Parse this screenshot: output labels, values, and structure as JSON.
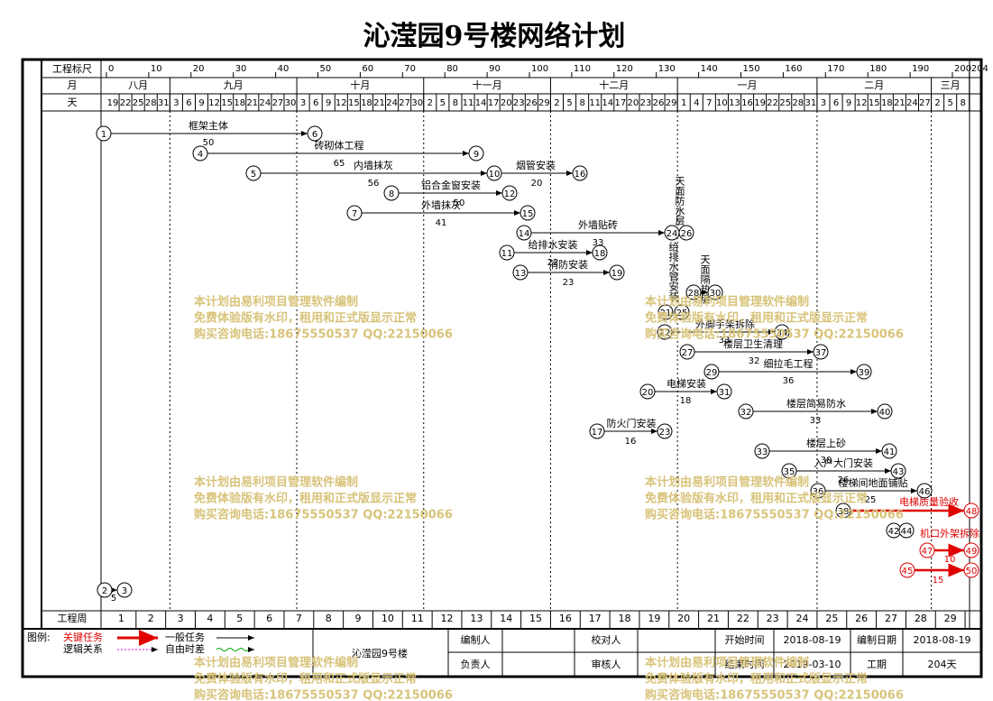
{
  "header": {
    "title": "沁滢园9号楼网络计划"
  },
  "scale": {
    "label": "工程标尺",
    "ticks": [
      0,
      10,
      20,
      30,
      40,
      50,
      60,
      70,
      80,
      90,
      100,
      110,
      120,
      130,
      140,
      150,
      160,
      170,
      180,
      190,
      200,
      204
    ]
  },
  "calendar": {
    "month_label": "月",
    "day_label": "天",
    "months": [
      {
        "name": "八月",
        "days": [
          19,
          22,
          25,
          28,
          31
        ]
      },
      {
        "name": "九月",
        "days": [
          3,
          6,
          9,
          12,
          15,
          18,
          21,
          24,
          27,
          30
        ]
      },
      {
        "name": "十月",
        "days": [
          3,
          6,
          9,
          12,
          15,
          18,
          21,
          24,
          27,
          30
        ]
      },
      {
        "name": "十一月",
        "days": [
          2,
          5,
          8,
          11,
          14,
          17,
          20,
          23,
          26,
          29
        ]
      },
      {
        "name": "十二月",
        "days": [
          2,
          5,
          8,
          11,
          14,
          17,
          20,
          23,
          26,
          29
        ]
      },
      {
        "name": "一月",
        "days": [
          1,
          4,
          7,
          10,
          13,
          16,
          19,
          22,
          25,
          28,
          31
        ]
      },
      {
        "name": "二月",
        "days": [
          3,
          6,
          9,
          12,
          15,
          18,
          21,
          24,
          27
        ]
      },
      {
        "name": "三月",
        "days": [
          2,
          5,
          8
        ]
      }
    ]
  },
  "weeks": {
    "label": "工程周",
    "values": [
      1,
      2,
      3,
      4,
      5,
      6,
      7,
      8,
      9,
      10,
      11,
      12,
      13,
      14,
      15,
      16,
      17,
      18,
      19,
      20,
      21,
      22,
      23,
      24,
      25,
      26,
      27,
      28,
      29
    ]
  },
  "nodes": [
    1,
    6,
    4,
    9,
    5,
    10,
    16,
    8,
    12,
    7,
    15,
    14,
    24,
    26,
    11,
    18,
    13,
    19,
    28,
    30,
    21,
    25,
    22,
    34,
    27,
    37,
    29,
    39,
    20,
    31,
    32,
    40,
    17,
    23,
    33,
    41,
    35,
    43,
    36,
    46,
    38,
    48,
    42,
    44,
    47,
    49,
    45,
    50,
    2,
    3
  ],
  "tasks": [
    {
      "name": "框架主体",
      "duration": 50
    },
    {
      "name": "砖砌体工程",
      "duration": 65
    },
    {
      "name": "内墙抹灰",
      "duration": 56
    },
    {
      "name": "烟管安装",
      "duration": 20
    },
    {
      "name": "铝合金窗安装",
      "duration": 50
    },
    {
      "name": "外墙抹灰",
      "duration": 41
    },
    {
      "name": "外墙贴砖",
      "duration": 33
    },
    {
      "name": "给排水安装",
      "duration": 22
    },
    {
      "name": "消防安装",
      "duration": 23
    },
    {
      "name": "外脚手架拆除",
      "duration": 33
    },
    {
      "name": "楼层卫生清理",
      "duration": 32
    },
    {
      "name": "细拉毛工程",
      "duration": 36
    },
    {
      "name": "电梯安装",
      "duration": 18
    },
    {
      "name": "楼层简易防水",
      "duration": 33
    },
    {
      "name": "防火门安装",
      "duration": 16
    },
    {
      "name": "楼层上砂",
      "duration": 30
    },
    {
      "name": "入户大门安装",
      "duration": 26
    },
    {
      "name": "楼梯间地面铺贴",
      "duration": 25
    },
    {
      "name": "电梯质量验收"
    },
    {
      "name": "机口外架拆除",
      "duration": 10
    },
    {
      "duration": 15
    },
    {
      "duration": 5
    },
    {
      "name": "天面隔热层"
    },
    {
      "name": "天面防水层"
    },
    {
      "name": "给排水管安装"
    }
  ],
  "watermark": [
    "本计划由易利项目管理软件编制",
    "免费体验版有水印，租用和正式版显示正常",
    "购买咨询电话:18675550537 QQ:22150066"
  ],
  "legend": {
    "title": "图例:",
    "critical": "关键任务",
    "logic": "逻辑关系",
    "normal": "一般任务",
    "float": "自由时差"
  },
  "footer": {
    "project": "沁滢园9号楼",
    "rows": [
      [
        "编制人",
        "校对人",
        "开始时间",
        "2018-08-19",
        "编制日期",
        "2018-08-19"
      ],
      [
        "负责人",
        "审核人",
        "结束时间",
        "2019-03-10",
        "工期",
        "204天"
      ]
    ]
  }
}
